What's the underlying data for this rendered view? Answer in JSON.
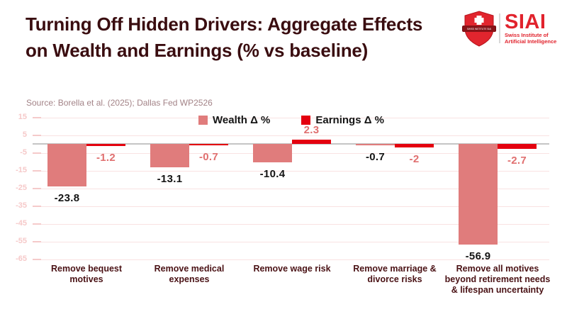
{
  "header": {
    "title": "Turning Off Hidden Drivers: Aggregate Effects on Wealth and Earnings (% vs baseline)",
    "source": "Source: Borella et al. (2025); Dallas Fed WP2526"
  },
  "logo": {
    "brand": "SIAI",
    "subtitle_line1": "Swiss Institute of",
    "subtitle_line2": "Artificial Intelligence",
    "brand_color": "#e1232d"
  },
  "chart_data": {
    "type": "bar",
    "title": "Turning Off Hidden Drivers: Aggregate Effects on Wealth and Earnings (% vs baseline)",
    "source": "Source: Borella et al. (2025); Dallas Fed WP2526",
    "categories": [
      "Remove bequest motives",
      "Remove medical expenses",
      "Remove wage risk",
      "Remove marriage & divorce risks",
      "Remove all motives beyond retirement needs & lifespan uncertainty"
    ],
    "series": [
      {
        "name": "Wealth Δ %",
        "color": "#e07c7c",
        "label_color": "#141414",
        "values": [
          -23.8,
          -13.1,
          -10.4,
          -0.7,
          -56.9
        ]
      },
      {
        "name": "Earnings Δ %",
        "color": "#e4000f",
        "label_color": "#e06f6f",
        "values": [
          -1.2,
          -0.7,
          2.3,
          -2,
          -2.7
        ]
      }
    ],
    "yticks": [
      15,
      5,
      -5,
      -15,
      -25,
      -35,
      -45,
      -55,
      -65
    ],
    "ylim": [
      -65,
      17
    ],
    "grid": true,
    "legend_position": "top-center",
    "zero_line_color": "#c5c5c5",
    "gridline_color": "#f9e2e2",
    "ytick_label_color": "#f6c9c9"
  }
}
